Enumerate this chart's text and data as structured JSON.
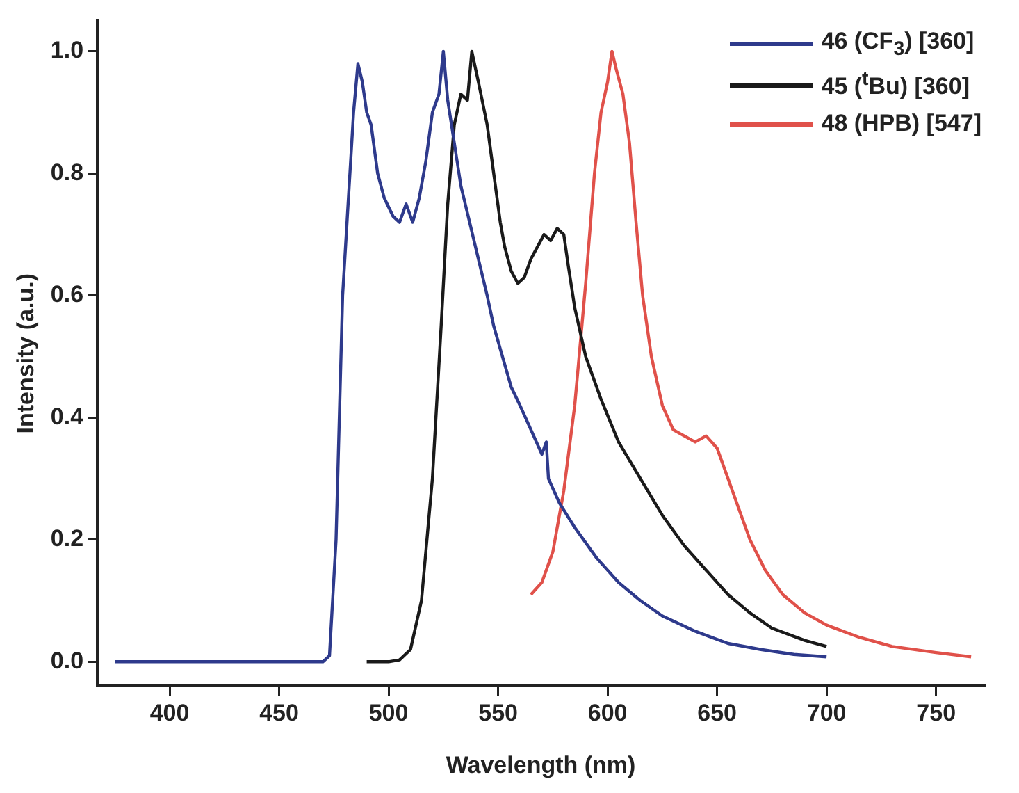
{
  "chart_data": {
    "type": "line",
    "xlabel": "Wavelength (nm)",
    "ylabel": "Intensity (a.u.)",
    "xlim": [
      367,
      772
    ],
    "ylim": [
      -0.04,
      1.05
    ],
    "xticks": [
      400,
      450,
      500,
      550,
      600,
      650,
      700,
      750
    ],
    "yticks": [
      {
        "value": 0,
        "label": "0.0"
      },
      {
        "value": 0.2,
        "label": "0.2"
      },
      {
        "value": 0.4,
        "label": "0.4"
      },
      {
        "value": 0.6,
        "label": "0.6"
      },
      {
        "value": 0.8,
        "label": "0.8"
      },
      {
        "value": 1,
        "label": "1.0"
      }
    ],
    "grid": false,
    "legend": "top right",
    "marker": "none",
    "line_style": "solid",
    "series": [
      {
        "name": "46 (CF$_{3}$) [360]",
        "color": "#2e3a8c",
        "x": [
          375,
          470,
          473,
          476,
          479,
          481,
          484,
          486,
          488,
          490,
          492,
          495,
          498,
          502,
          505,
          508,
          511,
          514,
          517,
          520,
          523,
          525,
          527,
          530,
          533,
          537,
          541,
          545,
          548,
          552,
          556,
          560,
          565,
          570,
          572,
          573,
          578,
          585,
          595,
          605,
          615,
          625,
          640,
          655,
          670,
          685,
          700
        ],
        "values": [
          0,
          0,
          0.01,
          0.2,
          0.6,
          0.72,
          0.9,
          0.98,
          0.95,
          0.9,
          0.88,
          0.8,
          0.76,
          0.73,
          0.72,
          0.75,
          0.72,
          0.76,
          0.82,
          0.9,
          0.93,
          1.0,
          0.92,
          0.85,
          0.78,
          0.72,
          0.66,
          0.6,
          0.55,
          0.5,
          0.45,
          0.42,
          0.38,
          0.34,
          0.36,
          0.3,
          0.26,
          0.22,
          0.17,
          0.13,
          0.1,
          0.075,
          0.05,
          0.03,
          0.02,
          0.012,
          0.008
        ]
      },
      {
        "name": "45 ($^{t}$Bu) [360]",
        "color": "#1a1a1a",
        "x": [
          490,
          500,
          505,
          510,
          515,
          520,
          524,
          527,
          530,
          533,
          536,
          538,
          541,
          545,
          548,
          551,
          553,
          556,
          559,
          562,
          565,
          568,
          571,
          574,
          577,
          580,
          582,
          585,
          590,
          597,
          605,
          615,
          625,
          635,
          645,
          655,
          665,
          675,
          690,
          700
        ],
        "values": [
          0,
          0,
          0.003,
          0.02,
          0.1,
          0.3,
          0.55,
          0.75,
          0.88,
          0.93,
          0.92,
          1.0,
          0.95,
          0.88,
          0.8,
          0.72,
          0.68,
          0.64,
          0.62,
          0.63,
          0.66,
          0.68,
          0.7,
          0.69,
          0.71,
          0.7,
          0.65,
          0.58,
          0.5,
          0.43,
          0.36,
          0.3,
          0.24,
          0.19,
          0.15,
          0.11,
          0.08,
          0.055,
          0.035,
          0.025
        ]
      },
      {
        "name": "48 (HPB) [547]",
        "color": "#e0514a",
        "x": [
          565,
          570,
          575,
          580,
          585,
          590,
          594,
          597,
          600,
          602,
          604,
          607,
          610,
          613,
          616,
          620,
          625,
          630,
          635,
          640,
          645,
          650,
          655,
          660,
          665,
          672,
          680,
          690,
          700,
          715,
          730,
          750,
          766
        ],
        "values": [
          0.11,
          0.13,
          0.18,
          0.28,
          0.42,
          0.62,
          0.8,
          0.9,
          0.95,
          1.0,
          0.97,
          0.93,
          0.85,
          0.72,
          0.6,
          0.5,
          0.42,
          0.38,
          0.37,
          0.36,
          0.37,
          0.35,
          0.3,
          0.25,
          0.2,
          0.15,
          0.11,
          0.08,
          0.06,
          0.04,
          0.025,
          0.015,
          0.008
        ]
      }
    ]
  }
}
